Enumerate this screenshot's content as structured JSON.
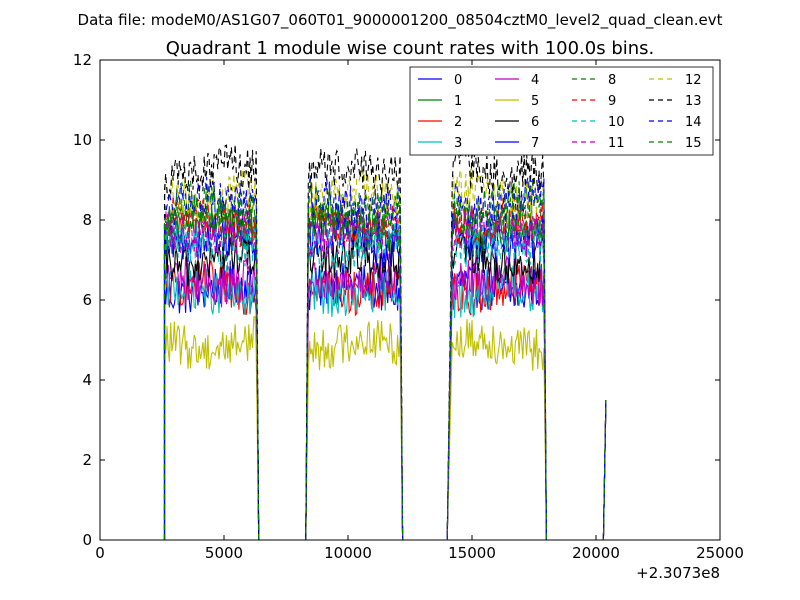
{
  "suptitle": "Data file: modeM0/AS1G07_060T01_9000001200_08504cztM0_level2_quad_clean.evt",
  "chart_data": {
    "type": "line",
    "title": "Quadrant 1 module wise count rates with 100.0s bins.",
    "xlabel": "",
    "ylabel": "",
    "xlim": [
      0,
      25000
    ],
    "ylim": [
      0,
      12
    ],
    "x_offset_label": "+2.3073e8",
    "x_ticks": [
      "0",
      "5000",
      "10000",
      "15000",
      "20000",
      "25000"
    ],
    "y_ticks": [
      "0",
      "2",
      "4",
      "6",
      "8",
      "10",
      "12"
    ],
    "grid": false,
    "legend": {
      "placement": "top-right",
      "ncol": 4
    },
    "segments": [
      {
        "x_start": 2600,
        "x_end": 6300,
        "rise_x": 2600,
        "fall_x": 6400
      },
      {
        "x_start": 8400,
        "x_end": 12100,
        "rise_x": 8300,
        "fall_x": 12200
      },
      {
        "x_start": 14200,
        "x_end": 17900,
        "rise_x": 14000,
        "fall_x": 18000
      }
    ],
    "spike": {
      "x": 20400,
      "y": 3.5
    },
    "x_zero_ranges": [
      [
        6400,
        8300
      ],
      [
        12200,
        14000
      ],
      [
        18000,
        20300
      ]
    ],
    "series": [
      {
        "name": "0",
        "color": "#0000ff",
        "dash": "solid",
        "level": 6.3
      },
      {
        "name": "1",
        "color": "#008000",
        "dash": "solid",
        "level": 7.8
      },
      {
        "name": "2",
        "color": "#ff0000",
        "dash": "solid",
        "level": 6.3
      },
      {
        "name": "3",
        "color": "#00bfbf",
        "dash": "solid",
        "level": 6.2
      },
      {
        "name": "4",
        "color": "#bf00bf",
        "dash": "solid",
        "level": 6.5
      },
      {
        "name": "5",
        "color": "#bfbf00",
        "dash": "solid",
        "level": 4.9
      },
      {
        "name": "6",
        "color": "#000000",
        "dash": "solid",
        "level": 7.0
      },
      {
        "name": "7",
        "color": "#0000ff",
        "dash": "solid",
        "level": 7.5
      },
      {
        "name": "8",
        "color": "#008000",
        "dash": "dashed",
        "level": 7.9
      },
      {
        "name": "9",
        "color": "#ff0000",
        "dash": "dashed",
        "level": 8.0
      },
      {
        "name": "10",
        "color": "#00bfbf",
        "dash": "dashed",
        "level": 7.4
      },
      {
        "name": "11",
        "color": "#bf00bf",
        "dash": "dashed",
        "level": 7.7
      },
      {
        "name": "12",
        "color": "#bfbf00",
        "dash": "dashed",
        "level": 8.6
      },
      {
        "name": "13",
        "color": "#000000",
        "dash": "dashed",
        "level": 9.2
      },
      {
        "name": "14",
        "color": "#0000ff",
        "dash": "dashed",
        "level": 8.4
      },
      {
        "name": "15",
        "color": "#008000",
        "dash": "dashed",
        "level": 8.3
      }
    ]
  }
}
